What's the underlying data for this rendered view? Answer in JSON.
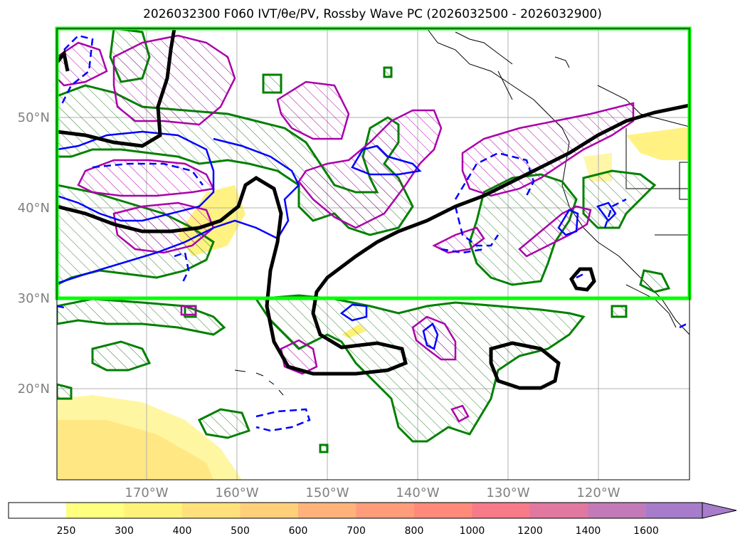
{
  "title": "2026032300 F060 IVT/θe/PV, Rossby Wave PC (2026032500 - 2026032900)",
  "map": {
    "lat_labels": [
      "50°N",
      "40°N",
      "30°N",
      "20°N"
    ],
    "lon_labels": [
      "170°W",
      "160°W",
      "150°W",
      "140°W",
      "130°W",
      "120°W"
    ],
    "highlight_box": {
      "lat_min": 30,
      "lat_max": 60,
      "lon_min": -180,
      "lon_max": -110
    },
    "colors": {
      "highlight_box": "#00ff00",
      "pv_contour": "#000000",
      "theta_e_contour": "#0000ff",
      "pc_positive_contour": "#008000",
      "pc_negative_contour": "#aa00aa",
      "ivt_fill": "#fff176",
      "grid": "#b0b0b0",
      "tick_label": "#808080"
    }
  },
  "colorbar": {
    "labels": [
      "250",
      "300",
      "400",
      "500",
      "600",
      "700",
      "800",
      "1000",
      "1200",
      "1400",
      "1600"
    ],
    "colors": [
      "#ffff80",
      "#fff27a",
      "#ffe07a",
      "#ffcf7a",
      "#ffb27a",
      "#ff9c7a",
      "#ff8a7a",
      "#f77a88",
      "#e078a0",
      "#c37ab8",
      "#a67ccb"
    ]
  }
}
